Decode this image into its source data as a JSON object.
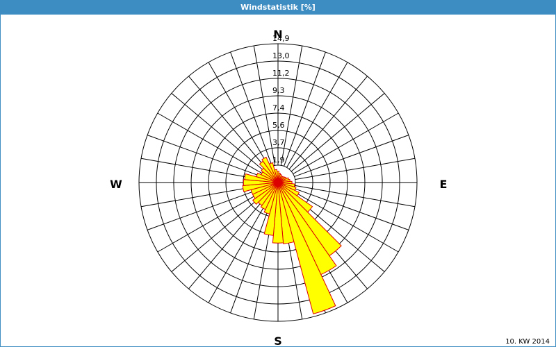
{
  "chart_data": {
    "type": "windrose",
    "title": "Windstatistik [%]",
    "directions": [
      "N",
      "E",
      "S",
      "W"
    ],
    "footnote": "10. KW 2014",
    "values": [
      1.2,
      1.0,
      0.9,
      0.8,
      0.8,
      0.9,
      1.0,
      1.2,
      1.3,
      1.5,
      1.8,
      2.0,
      2.5,
      4.5,
      9.6,
      10.9,
      14.6,
      6.6,
      6.5,
      5.7,
      3.5,
      3.2,
      3.0,
      3.3,
      3.0,
      3.0,
      3.8,
      3.7,
      3.6,
      2.4,
      2.0,
      2.2,
      2.8,
      3.0,
      2.2,
      1.4
    ],
    "color": "#ffff00",
    "edge_color": "#dd0000",
    "rlim": [
      0,
      14.9
    ],
    "rticks": [
      {
        "value": 1.86,
        "label": "1,9"
      },
      {
        "value": 3.73,
        "label": "3,7"
      },
      {
        "value": 5.59,
        "label": "5,6"
      },
      {
        "value": 7.45,
        "label": "7,4"
      },
      {
        "value": 9.31,
        "label": "9,3"
      },
      {
        "value": 11.18,
        "label": "11,2"
      },
      {
        "value": 13.04,
        "label": "13,0"
      },
      {
        "value": 14.9,
        "label": "14,9"
      }
    ],
    "grid": true
  }
}
